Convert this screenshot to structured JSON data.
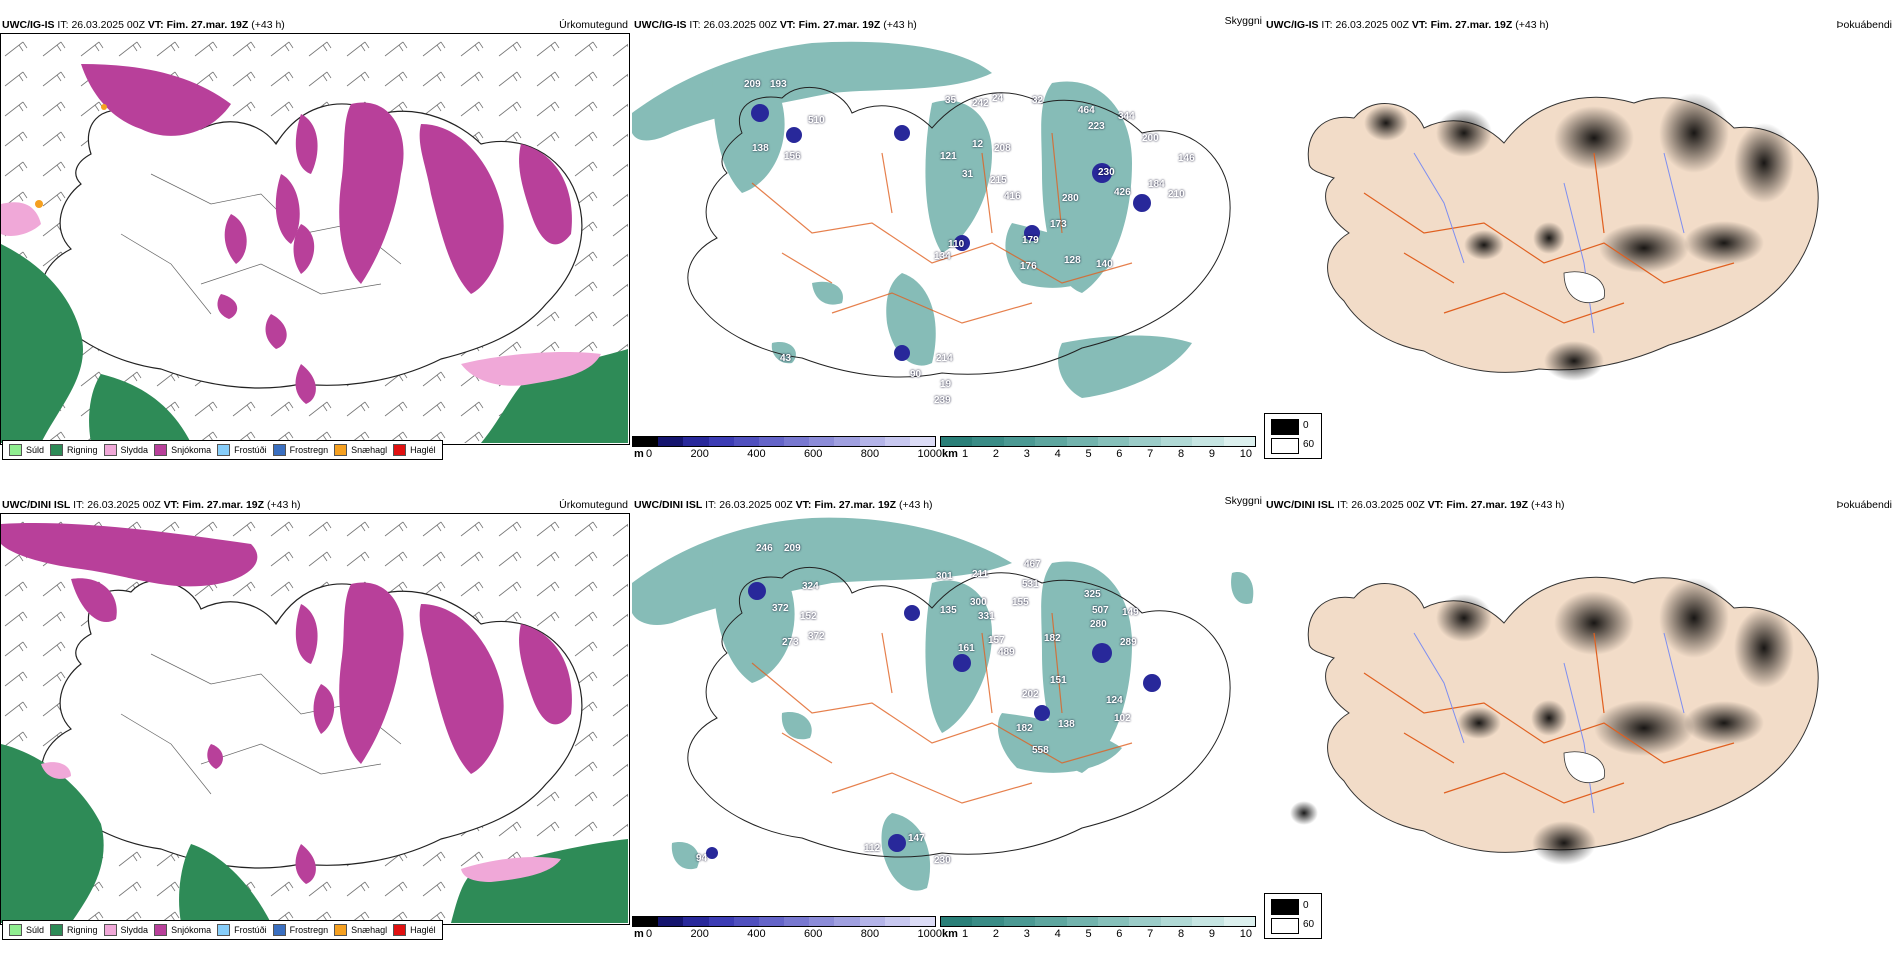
{
  "rows": [
    {
      "model": "UWC/IG-IS",
      "it_label": "IT:",
      "it_value": "26.03.2025 00Z",
      "vt_label": "VT:",
      "vt_value": "Fim. 27.mar. 19Z",
      "lead": "(+43 h)",
      "cloud_base_labels": [
        "209",
        "193",
        "510",
        "138",
        "156",
        "35",
        "242",
        "24",
        "32",
        "464",
        "223",
        "344",
        "200",
        "146",
        "121",
        "12",
        "208",
        "31",
        "215",
        "416",
        "230",
        "426",
        "184",
        "210",
        "280",
        "173",
        "179",
        "176",
        "128",
        "140",
        "110",
        "134",
        "214",
        "19",
        "239",
        "43",
        "90"
      ]
    },
    {
      "model": "UWC/DINI ISL",
      "it_label": "IT:",
      "it_value": "26.03.2025 00Z",
      "vt_label": "VT:",
      "vt_value": "Fim. 27.mar. 19Z",
      "lead": "(+43 h)",
      "cloud_base_labels": [
        "246",
        "209",
        "324",
        "372",
        "152",
        "273",
        "372",
        "301",
        "211",
        "467",
        "531",
        "135",
        "300",
        "331",
        "155",
        "325",
        "507",
        "280",
        "149",
        "161",
        "157",
        "489",
        "182",
        "289",
        "202",
        "151",
        "138",
        "124",
        "102",
        "182",
        "558",
        "94",
        "112",
        "230",
        "147"
      ]
    }
  ],
  "panels": {
    "precip_type_title": "Úrkomutegund",
    "visibility_title": "Skyggni",
    "fog_title": "Þokuábendi"
  },
  "precip_legend": [
    {
      "label": "Súld",
      "color": "#90ee90"
    },
    {
      "label": "Rigning",
      "color": "#2e8b57"
    },
    {
      "label": "Slydda",
      "color": "#f0a8d8"
    },
    {
      "label": "Snjókoma",
      "color": "#b8409a"
    },
    {
      "label": "Frostúði",
      "color": "#87cefa"
    },
    {
      "label": "Frostregn",
      "color": "#3a6fc0"
    },
    {
      "label": "Snæhagl",
      "color": "#f5a020"
    },
    {
      "label": "Haglél",
      "color": "#e01010"
    }
  ],
  "cloud_base_scale": {
    "unit": "m",
    "ticks": [
      "0",
      "200",
      "400",
      "600",
      "800",
      "1000"
    ],
    "colors": [
      "#000000",
      "#14146e",
      "#28289a",
      "#3c3cb4",
      "#5050be",
      "#6464c8",
      "#7878d0",
      "#8c8cd8",
      "#a0a0e0",
      "#b4b4e8",
      "#c8c8f0",
      "#dcdcf6"
    ]
  },
  "visibility_scale": {
    "unit": "km",
    "ticks": [
      "1",
      "2",
      "3",
      "4",
      "5",
      "6",
      "7",
      "8",
      "9",
      "10"
    ],
    "colors": [
      "#2a7f78",
      "#3a8c86",
      "#4b9993",
      "#5ea69f",
      "#72b3ad",
      "#86c0ba",
      "#9bccc8",
      "#b0d9d5",
      "#c6e5e2",
      "#dcf0ee"
    ]
  },
  "fog_legend": {
    "values": [
      "0",
      "60"
    ],
    "colors": [
      "#000000",
      "#ffffff"
    ]
  },
  "colors": {
    "land": "#f2dcc8",
    "snow": "#b8409a",
    "rain": "#2e8b57",
    "sleet": "#f0a8d8",
    "vis": "#5ea69f",
    "road": "#e06020",
    "river": "#7e8ef0"
  }
}
